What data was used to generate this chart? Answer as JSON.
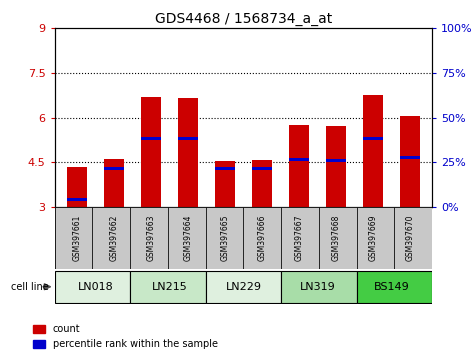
{
  "title": "GDS4468 / 1568734_a_at",
  "samples": [
    "GSM397661",
    "GSM397662",
    "GSM397663",
    "GSM397664",
    "GSM397665",
    "GSM397666",
    "GSM397667",
    "GSM397668",
    "GSM397669",
    "GSM397670"
  ],
  "count_values": [
    4.35,
    4.6,
    6.7,
    6.65,
    4.55,
    4.58,
    5.75,
    5.72,
    6.75,
    6.07
  ],
  "percentile_values": [
    3.25,
    4.3,
    5.3,
    5.3,
    4.3,
    4.3,
    4.6,
    4.55,
    5.3,
    4.65
  ],
  "cell_lines": [
    {
      "name": "LN018",
      "indices": [
        0,
        1
      ],
      "color": "#dff0df"
    },
    {
      "name": "LN215",
      "indices": [
        2,
        3
      ],
      "color": "#c8e8c8"
    },
    {
      "name": "LN229",
      "indices": [
        4,
        5
      ],
      "color": "#dff0df"
    },
    {
      "name": "LN319",
      "indices": [
        6,
        7
      ],
      "color": "#a8dda8"
    },
    {
      "name": "BS149",
      "indices": [
        8,
        9
      ],
      "color": "#44cc44"
    }
  ],
  "ylim_left": [
    3,
    9
  ],
  "ylim_right": [
    0,
    100
  ],
  "yticks_left": [
    3,
    4.5,
    6,
    7.5,
    9
  ],
  "ytick_labels_left": [
    "3",
    "4.5",
    "6",
    "7.5",
    "9"
  ],
  "yticks_right": [
    0,
    25,
    50,
    75,
    100
  ],
  "ytick_labels_right": [
    "0%",
    "25%",
    "50%",
    "75%",
    "100%"
  ],
  "bar_color": "#cc0000",
  "percentile_color": "#0000cc",
  "bar_width": 0.55,
  "background_plot": "#ffffff",
  "sample_bg_color": "#c8c8c8",
  "border_color": "#000000"
}
